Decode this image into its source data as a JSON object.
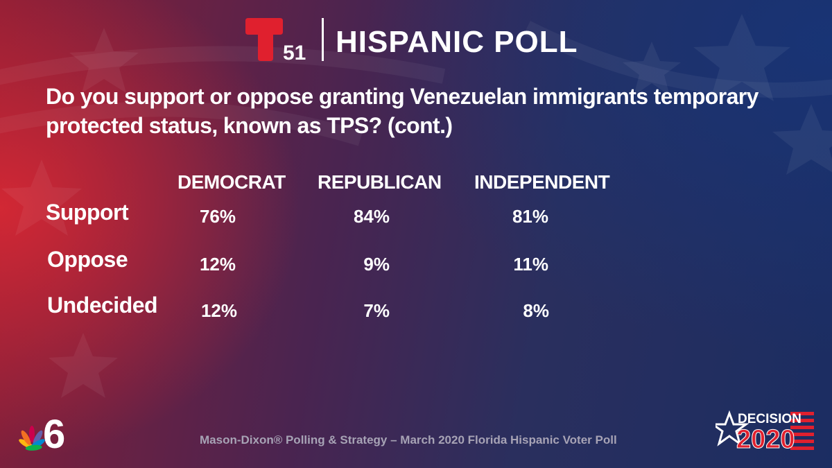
{
  "header": {
    "station_number": "51",
    "title": "HISPANIC POLL"
  },
  "question": "Do you support or oppose granting Venezuelan immigrants temporary protected status, known as TPS? (cont.)",
  "table": {
    "columns": [
      "DEMOCRAT",
      "REPUBLICAN",
      "INDEPENDENT"
    ],
    "rows": [
      {
        "label": "Support",
        "values": [
          "76%",
          "84%",
          "81%"
        ]
      },
      {
        "label": "Oppose",
        "values": [
          "12%",
          "9%",
          "11%"
        ]
      },
      {
        "label": "Undecided",
        "values": [
          "12%",
          "7%",
          "8%"
        ]
      }
    ]
  },
  "footer": {
    "source": "Mason-Dixon® Polling & Strategy – March 2020 Florida Hispanic Voter Poll",
    "nbc_channel": "6",
    "decision_word": "DECISION",
    "decision_year": "2020"
  },
  "colors": {
    "telemundo_red": "#e0202e",
    "red_glow": "#d62834",
    "blue_glow": "#183476",
    "source_text": "#a7a3b5"
  }
}
